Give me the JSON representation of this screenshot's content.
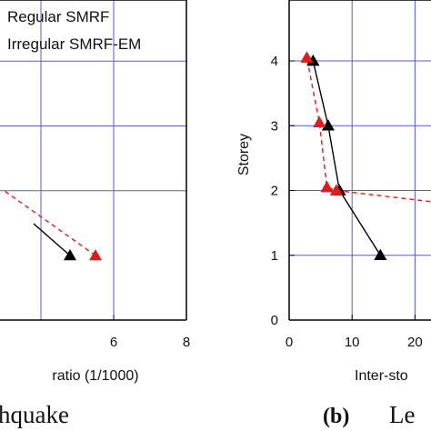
{
  "chart_data": [
    {
      "type": "line",
      "panel": "left",
      "xlabel": "ratio (1/1000)",
      "ylabel": "",
      "xlim": [
        0,
        8
      ],
      "ylim": [
        0,
        4.5
      ],
      "xticks": [
        6,
        8
      ],
      "yticks": [],
      "grid": true,
      "legend_position": "top-left",
      "caption": "hquake",
      "caption_prefix": "",
      "series": [
        {
          "name": "Regular SMRF",
          "color": "#000000",
          "dash": "solid",
          "points": [
            {
              "x": 4.8,
              "y": 1
            },
            {
              "x": 3.8,
              "y": 1.5
            }
          ]
        },
        {
          "name": "Irregular SMRF-EM",
          "color": "#e11b1b",
          "dash": "dashed",
          "points": [
            {
              "x": 5.5,
              "y": 1
            },
            {
              "x": 3.0,
              "y": 2
            }
          ]
        }
      ]
    },
    {
      "type": "line",
      "panel": "right",
      "xlabel": "Inter-sto",
      "ylabel": "Storey",
      "xlim": [
        0,
        25
      ],
      "ylim": [
        0,
        4.5
      ],
      "xticks": [
        0,
        10,
        20
      ],
      "xtick_labels": [
        "0",
        "10",
        "20"
      ],
      "yticks": [
        0,
        1,
        2,
        3,
        4
      ],
      "grid": true,
      "caption_prefix": "(b)",
      "caption": "Le",
      "series": [
        {
          "name": "Regular SMRF",
          "color": "#000000",
          "dash": "solid",
          "points": [
            {
              "x": 14.5,
              "y": 1
            },
            {
              "x": 8.0,
              "y": 2
            },
            {
              "x": 6.2,
              "y": 3
            },
            {
              "x": 3.8,
              "y": 4
            }
          ]
        },
        {
          "name": "Irregular SMRF-EM",
          "color": "#e11b1b",
          "dash": "dashed",
          "points": [
            {
              "x": 25,
              "y": 1.8
            },
            {
              "x": 7.5,
              "y": 2
            },
            {
              "x": 6.0,
              "y": 2.05
            },
            {
              "x": 4.8,
              "y": 3.05
            },
            {
              "x": 2.8,
              "y": 4.05
            }
          ]
        }
      ]
    }
  ]
}
